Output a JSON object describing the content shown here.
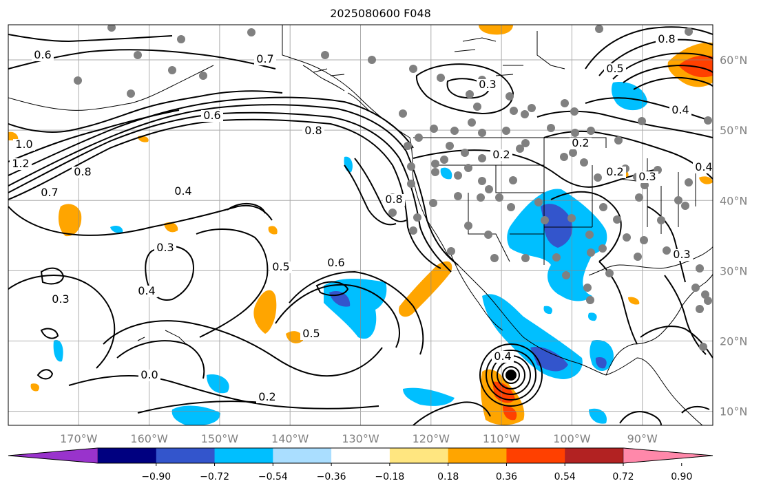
{
  "title": "2025080600 F048",
  "map": {
    "lon_range": [
      -180,
      -80
    ],
    "lat_range": [
      8,
      65
    ],
    "lon_ticks": [
      {
        "value": -170,
        "label": "170°W"
      },
      {
        "value": -160,
        "label": "160°W"
      },
      {
        "value": -150,
        "label": "150°W"
      },
      {
        "value": -140,
        "label": "140°W"
      },
      {
        "value": -130,
        "label": "130°W"
      },
      {
        "value": -120,
        "label": "120°W"
      },
      {
        "value": -110,
        "label": "110°W"
      },
      {
        "value": -100,
        "label": "100°W"
      },
      {
        "value": -90,
        "label": "90°W"
      }
    ],
    "lat_ticks": [
      {
        "value": 60,
        "label": "60°N"
      },
      {
        "value": 50,
        "label": "50°N"
      },
      {
        "value": 40,
        "label": "40°N"
      },
      {
        "value": 30,
        "label": "30°N"
      },
      {
        "value": 20,
        "label": "20°N"
      },
      {
        "value": 10,
        "label": "10°N"
      }
    ],
    "contour_labels": [
      "0.6",
      "0.7",
      "0.6",
      "0.8",
      "1.0",
      "1.2",
      "0.8",
      "0.7",
      "0.4",
      "0.3",
      "0.4",
      "0.3",
      "0.5",
      "0.6",
      "0.5",
      "0.8",
      "0.2",
      "0.3",
      "0.2",
      "0.2",
      "0.4",
      "0.3",
      "0.4",
      "0.3",
      "0.8",
      "0.5",
      "0.4",
      "0.2",
      "0.0"
    ],
    "cyclone_center": {
      "lon": -108,
      "lat": 15
    }
  },
  "colorbar": {
    "colors": [
      "#9933cc",
      "#000080",
      "#3355cc",
      "#00bfff",
      "#aadeff",
      "#ffffff",
      "#ffe680",
      "#ffa500",
      "#ff4000",
      "#b22222",
      "#ff88aa"
    ],
    "labels": [
      "−0.90",
      "−0.72",
      "−0.54",
      "−0.36",
      "−0.18",
      "0.18",
      "0.36",
      "0.54",
      "0.72",
      "0.90"
    ]
  }
}
